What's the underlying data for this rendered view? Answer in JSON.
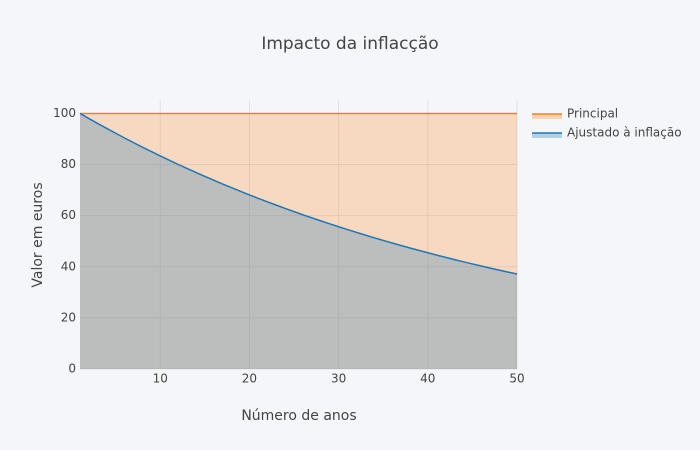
{
  "chart_data": {
    "type": "area",
    "title": "Impacto da inflacção",
    "x_label": "Número de anos",
    "y_label": "Valor em euros",
    "x": [
      1,
      2,
      3,
      4,
      5,
      6,
      7,
      8,
      9,
      10,
      11,
      12,
      13,
      14,
      15,
      16,
      17,
      18,
      19,
      20,
      21,
      22,
      23,
      24,
      25,
      26,
      27,
      28,
      29,
      30,
      31,
      32,
      33,
      34,
      35,
      36,
      37,
      38,
      39,
      40,
      41,
      42,
      43,
      44,
      45,
      46,
      47,
      48,
      49,
      50
    ],
    "series": [
      {
        "name": "Principal",
        "color": "#ff7f0e",
        "values": [
          100,
          100,
          100,
          100,
          100,
          100,
          100,
          100,
          100,
          100,
          100,
          100,
          100,
          100,
          100,
          100,
          100,
          100,
          100,
          100,
          100,
          100,
          100,
          100,
          100,
          100,
          100,
          100,
          100,
          100,
          100,
          100,
          100,
          100,
          100,
          100,
          100,
          100,
          100,
          100,
          100,
          100,
          100,
          100,
          100,
          100,
          100,
          100,
          100,
          100
        ]
      },
      {
        "name": "Ajustado à inflação",
        "color": "#1f77b4",
        "values": [
          100,
          98,
          96.04,
          94.12,
          92.24,
          90.39,
          88.58,
          86.81,
          85.08,
          83.37,
          81.71,
          80.07,
          78.47,
          76.9,
          75.36,
          73.86,
          72.38,
          70.93,
          69.51,
          68.12,
          66.76,
          65.43,
          64.12,
          62.83,
          61.58,
          60.35,
          59.14,
          57.96,
          56.8,
          55.66,
          54.55,
          53.46,
          52.39,
          51.34,
          50.31,
          49.31,
          48.32,
          47.35,
          46.41,
          45.48,
          44.57,
          43.68,
          42.8,
          41.95,
          41.11,
          40.29,
          39.48,
          38.69,
          37.92,
          37.16
        ]
      }
    ],
    "xlim": [
      1,
      50
    ],
    "xticks": [
      10,
      20,
      30,
      40,
      50
    ],
    "ylim": [
      0,
      105.26
    ],
    "yticks": [
      0,
      20,
      40,
      60,
      80,
      100
    ],
    "grid": true,
    "legend": "right"
  }
}
